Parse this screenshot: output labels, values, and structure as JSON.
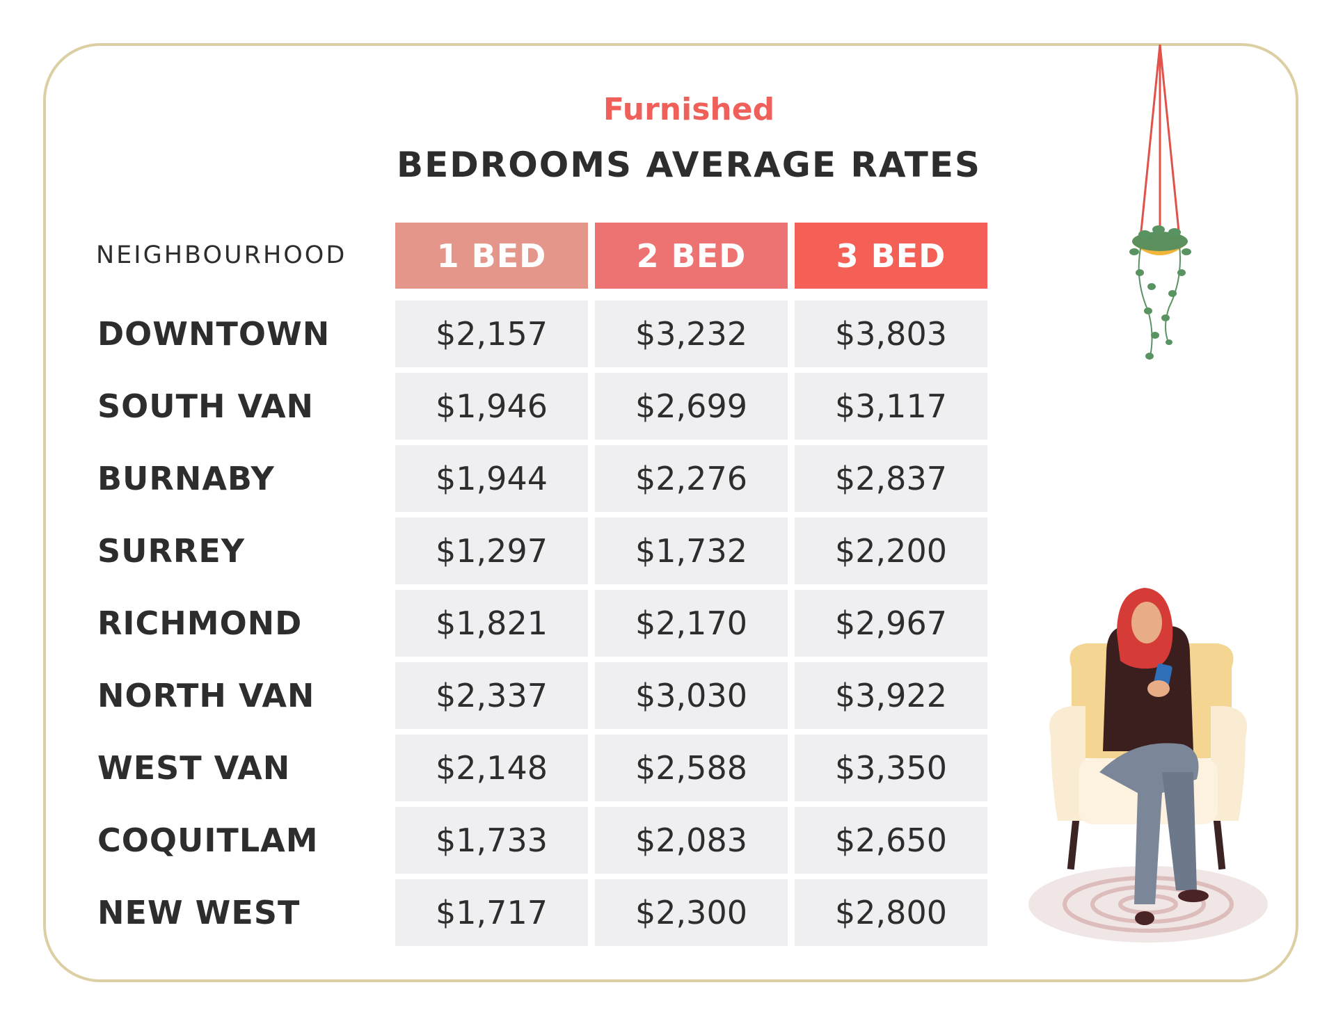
{
  "chart_data": {
    "type": "table",
    "subtitle": "Furnished",
    "title": "BEDROOMS AVERAGE RATES",
    "row_header": "NEIGHBOURHOOD",
    "columns": [
      "1 BED",
      "2 BED",
      "3 BED"
    ],
    "column_colors": [
      "#e5968b",
      "#ec7371",
      "#f45f56"
    ],
    "rows": [
      {
        "label": "DOWNTOWN",
        "values": [
          "$2,157",
          "$3,232",
          "$3,803"
        ]
      },
      {
        "label": "SOUTH VAN",
        "values": [
          "$1,946",
          "$2,699",
          "$3,117"
        ]
      },
      {
        "label": "BURNABY",
        "values": [
          "$1,944",
          "$2,276",
          "$2,837"
        ]
      },
      {
        "label": "SURREY",
        "values": [
          "$1,297",
          "$1,732",
          "$2,200"
        ]
      },
      {
        "label": "RICHMOND",
        "values": [
          "$1,821",
          "$2,170",
          "$2,967"
        ]
      },
      {
        "label": "NORTH VAN",
        "values": [
          "$2,337",
          "$3,030",
          "$3,922"
        ]
      },
      {
        "label": "WEST VAN",
        "values": [
          "$2,148",
          "$2,588",
          "$3,350"
        ]
      },
      {
        "label": "COQUITLAM",
        "values": [
          "$1,733",
          "$2,083",
          "$2,650"
        ]
      },
      {
        "label": "NEW WEST",
        "values": [
          "$1,717",
          "$2,300",
          "$2,800"
        ]
      }
    ]
  },
  "illustrations": {
    "top_right": "hanging-plant-icon",
    "bottom_right": "woman-in-armchair-icon"
  }
}
